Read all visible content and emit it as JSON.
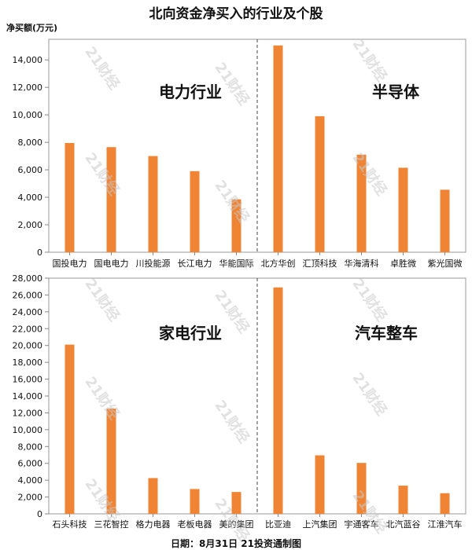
{
  "title": "北向资金净买入的行业及个股",
  "unit_label": "净买额(万元)",
  "footer": "日期：8月31日 21投资通制图",
  "watermark": "21财经",
  "colors": {
    "bar": "#ee8434",
    "axis": "#888888",
    "divider": "#444444",
    "frame": "#999999"
  },
  "chart_data": [
    {
      "type": "bar",
      "ylim": [
        0,
        15500
      ],
      "yticks": [
        0,
        2000,
        4000,
        6000,
        8000,
        10000,
        12000,
        14000
      ],
      "ytick_labels": [
        "0",
        "2,000",
        "4,000",
        "6,000",
        "8,000",
        "10,000",
        "12,000",
        "14,000"
      ],
      "groups": [
        {
          "label": "电力行业",
          "categories": [
            "国投电力",
            "国电电力",
            "川投能源",
            "长江电力",
            "华能国际"
          ],
          "values": [
            7950,
            7650,
            7000,
            5900,
            3850
          ]
        },
        {
          "label": "半导体",
          "categories": [
            "北方华创",
            "汇顶科技",
            "华海清科",
            "卓胜微",
            "紫光国微"
          ],
          "values": [
            15050,
            9900,
            7100,
            6150,
            4550
          ]
        }
      ]
    },
    {
      "type": "bar",
      "ylim": [
        0,
        28000
      ],
      "yticks": [
        0,
        2000,
        4000,
        6000,
        8000,
        10000,
        12000,
        14000,
        16000,
        18000,
        20000,
        22000,
        24000,
        26000,
        28000
      ],
      "ytick_labels": [
        "0",
        "2,000",
        "4,000",
        "6,000",
        "8,000",
        "10,000",
        "12,000",
        "14,000",
        "16,000",
        "18,000",
        "20,000",
        "22,000",
        "24,000",
        "26,000",
        "28,000"
      ],
      "groups": [
        {
          "label": "家电行业",
          "categories": [
            "石头科技",
            "三花智控",
            "格力电器",
            "老板电器",
            "美的集团"
          ],
          "values": [
            20100,
            12500,
            4250,
            2950,
            2600
          ]
        },
        {
          "label": "汽车整车",
          "categories": [
            "比亚迪",
            "上汽集团",
            "宇通客车",
            "北汽蓝谷",
            "江淮汽车"
          ],
          "values": [
            26900,
            6950,
            6050,
            3350,
            2450
          ]
        }
      ]
    }
  ]
}
